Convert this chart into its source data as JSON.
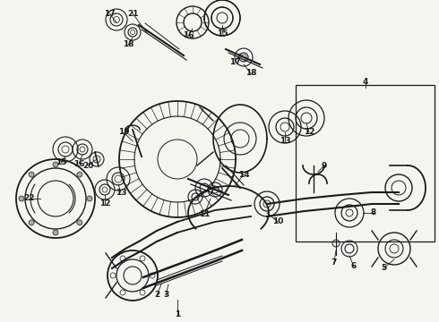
{
  "bg_color": "#f5f5f0",
  "lc": "#1a1a1a",
  "figsize": [
    4.9,
    3.6
  ],
  "dpi": 100,
  "xlim": [
    0,
    490
  ],
  "ylim": [
    0,
    360
  ]
}
